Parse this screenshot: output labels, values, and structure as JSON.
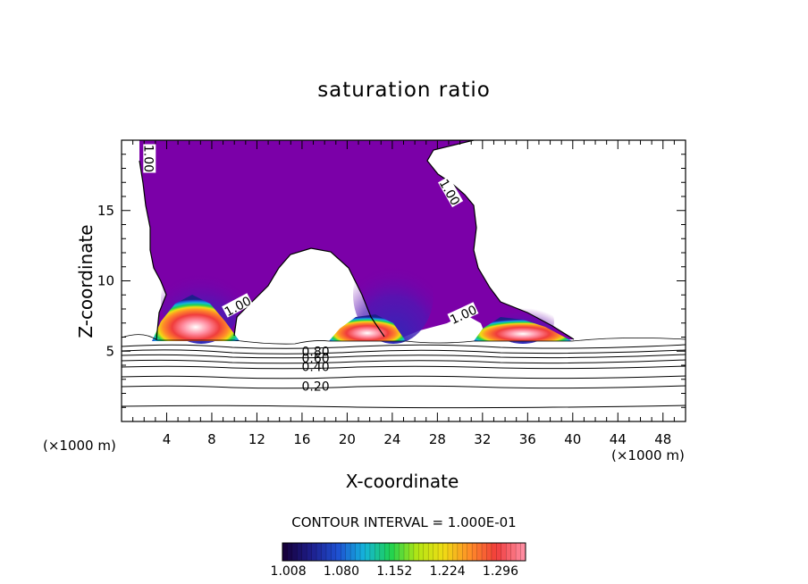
{
  "chart_data": {
    "type": "heatmap",
    "title": "saturation ratio",
    "xlabel": "X-coordinate",
    "ylabel": "Z-coordinate",
    "x_unit": "(×1000 m)",
    "xlim": [
      0,
      50
    ],
    "ylim": [
      0,
      20
    ],
    "x_ticks": [
      4,
      8,
      12,
      16,
      20,
      24,
      28,
      32,
      36,
      40,
      44,
      48
    ],
    "y_ticks": [
      5,
      10,
      15
    ],
    "contour_interval_text": "CONTOUR INTERVAL = 1.000E-01",
    "contour_labels": [
      {
        "text": "1.00",
        "x": 2.4,
        "y": 18.7,
        "rotation": 90
      },
      {
        "text": "1.00",
        "x": 29.1,
        "y": 16.3,
        "rotation": 60
      },
      {
        "text": "1.00",
        "x": 10.3,
        "y": 8.2,
        "rotation": -28
      },
      {
        "text": "1.00",
        "x": 30.3,
        "y": 7.6,
        "rotation": -25
      },
      {
        "text": "0.80",
        "x": 17.2,
        "y": 5.0,
        "rotation": 0
      },
      {
        "text": "0.60",
        "x": 17.2,
        "y": 4.5,
        "rotation": 0
      },
      {
        "text": "0.40",
        "x": 17.2,
        "y": 3.9,
        "rotation": 0
      },
      {
        "text": "0.20",
        "x": 17.2,
        "y": 2.5,
        "rotation": 0
      }
    ],
    "colorbar": {
      "min": 1.0,
      "max": 1.33,
      "labels": [
        "1.008",
        "1.080",
        "1.152",
        "1.224",
        "1.296"
      ],
      "colors": [
        "#16003c",
        "#1e1e8c",
        "#1e50d2",
        "#14b4dc",
        "#1ed250",
        "#b4e614",
        "#f0dc14",
        "#ff8c28",
        "#f03c3c",
        "#ff8ca0"
      ]
    },
    "supersaturated_fill_color": "#7b00a8"
  }
}
